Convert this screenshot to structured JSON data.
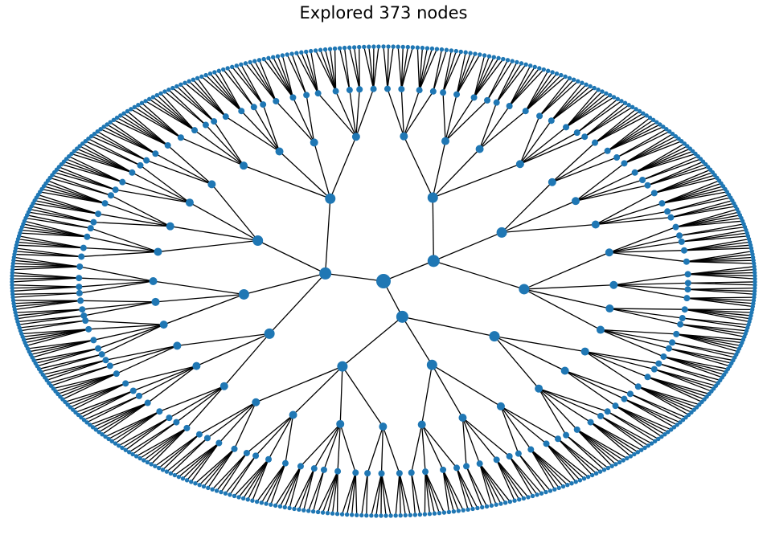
{
  "title": "Explored 373 nodes",
  "colors": {
    "node": "#1f77b4",
    "edge": "#000000"
  },
  "graph": {
    "type": "radial-tree",
    "node_count": 373,
    "node_sizes_by_level": [
      9,
      7.5,
      6.5,
      5,
      4,
      3.3,
      2.6
    ]
  }
}
